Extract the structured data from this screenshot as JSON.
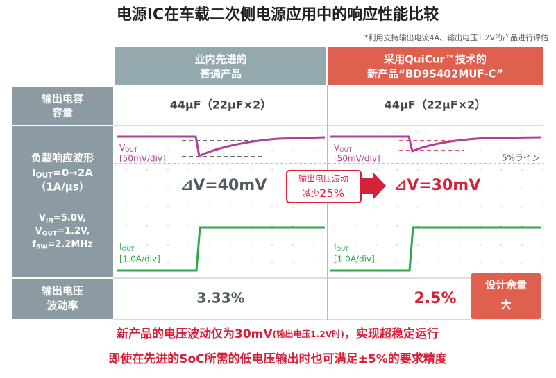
{
  "title": "电源IC在车载二次侧电源应用中的响应性能比较",
  "note": "*利用支持输出电流4A、输出电压1.2V的产品进行评估",
  "columns": [
    {
      "lines": [
        "业内先进的",
        "普通产品"
      ]
    },
    {
      "lines": [
        "采用QuiCur™技术的",
        "新产品“BD9S402MUF-C”"
      ]
    }
  ],
  "capacitance": {
    "label": [
      "输出电容",
      "容量"
    ],
    "values": [
      "44µF（22µF×2）",
      "44µF（22µF×2）"
    ]
  },
  "waveform": {
    "label": "负载响应波形",
    "iout_cond": [
      {
        "t": "I"
      },
      {
        "t": "OUT",
        "sub": true
      },
      {
        "t": "=0→2A"
      }
    ],
    "slew": "（1A/μs）",
    "vin": [
      {
        "t": "V"
      },
      {
        "t": "IN",
        "sub": true
      },
      {
        "t": "=5.0V,"
      }
    ],
    "vout": [
      {
        "t": "V"
      },
      {
        "t": "OUT",
        "sub": true
      },
      {
        "t": "=1.2V,"
      }
    ],
    "fsw": [
      {
        "t": "f"
      },
      {
        "t": "SW",
        "sub": true
      },
      {
        "t": "=2.2MHz"
      }
    ],
    "vout_name": [
      {
        "t": "V"
      },
      {
        "t": "OUT",
        "sub": true
      }
    ],
    "vout_div": "[50mV/div]",
    "iout_name": [
      {
        "t": "I"
      },
      {
        "t": "OUT",
        "sub": true
      }
    ],
    "iout_div": "[1.0A/div]",
    "line_label": "5%ライン",
    "delta": [
      "⊿V=40mV",
      "⊿V=30mV"
    ],
    "callout": {
      "top": "输出电压波动",
      "bottom": [
        {
          "t": "减少"
        },
        {
          "t": "25%",
          "big": true
        }
      ]
    }
  },
  "ripple": {
    "label": [
      "输出电压",
      "波动率"
    ],
    "values": [
      "3.33%",
      "2.5%"
    ],
    "badge": [
      "设计余量",
      "大"
    ]
  },
  "summary": [
    [
      {
        "t": "新产品的电压波动仅为30mV"
      },
      {
        "t": "(输出电压1.2V时)",
        "small": true
      },
      {
        "t": "，实现超稳定运行"
      }
    ],
    [
      {
        "t": "即使在先进的SoC所需的低电压输出时也可满足±5%的要求精度"
      }
    ]
  ]
}
